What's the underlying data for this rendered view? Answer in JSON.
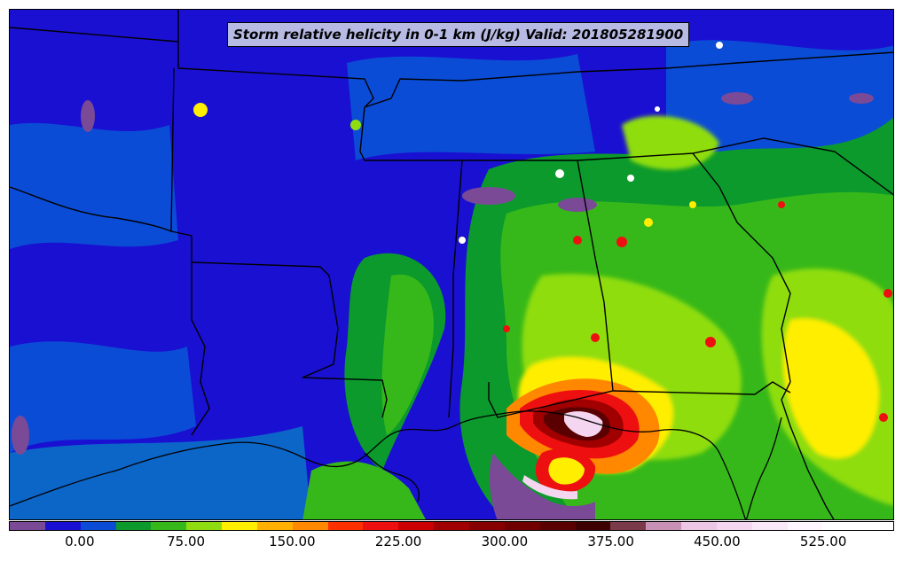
{
  "title": "Storm relative helicity in 0-1 km (J/kg) Valid: 201805281900",
  "map": {
    "background_color": "#1a10d2",
    "colors": {
      "deep_blue": "#1a10d2",
      "blue": "#0b4cd6",
      "teal_blue": "#0c66c8",
      "dark_green": "#0c9a2c",
      "green": "#37b81a",
      "lime": "#8fdd10",
      "yellow": "#ffee00",
      "orange": "#ff8800",
      "red": "#ee1010",
      "dark_red": "#a00000",
      "maroon": "#5a0000",
      "purple": "#7a4a96",
      "pink_white": "#f4d6f0",
      "boundary": "#000000"
    }
  },
  "colorbar": {
    "colors": [
      "#7a4a96",
      "#1a10d2",
      "#0b4cd6",
      "#0c9a2c",
      "#37b81a",
      "#8fdd10",
      "#ffee00",
      "#ffb000",
      "#ff8800",
      "#ff3000",
      "#ee1010",
      "#cc0000",
      "#a00000",
      "#860000",
      "#700000",
      "#5a0000",
      "#3e0000",
      "#7a3a4a",
      "#c890b4",
      "#ecc6e4",
      "#f4d6f0",
      "#fae8f8",
      "#fff6fe",
      "#ffffff",
      "#ffffff"
    ],
    "tick_labels": [
      "0.00",
      "75.00",
      "150.00",
      "225.00",
      "300.00",
      "375.00",
      "450.00",
      "525.00"
    ],
    "tick_values": [
      0,
      75,
      150,
      225,
      300,
      375,
      450,
      525
    ],
    "min": -50,
    "max": 575
  }
}
